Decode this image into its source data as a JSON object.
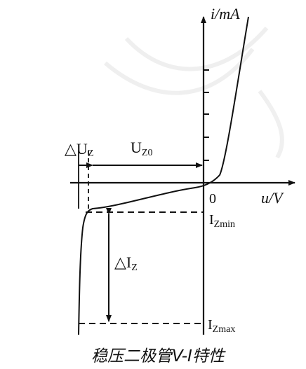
{
  "diagram": {
    "x_axis_label": "u/V",
    "y_axis_label": "i/mA",
    "origin_label": "0",
    "delta_uz_label": {
      "main": "△U",
      "sub": "Z"
    },
    "uz0_label": {
      "main": "U",
      "sub": "Z0"
    },
    "delta_iz_label": {
      "main": "△I",
      "sub": "Z"
    },
    "izmin_label": {
      "main": "I",
      "sub": "Zmin"
    },
    "izmax_label": {
      "main": "I",
      "sub": "Zmax"
    },
    "caption": "稳压二极管V-I特性"
  }
}
